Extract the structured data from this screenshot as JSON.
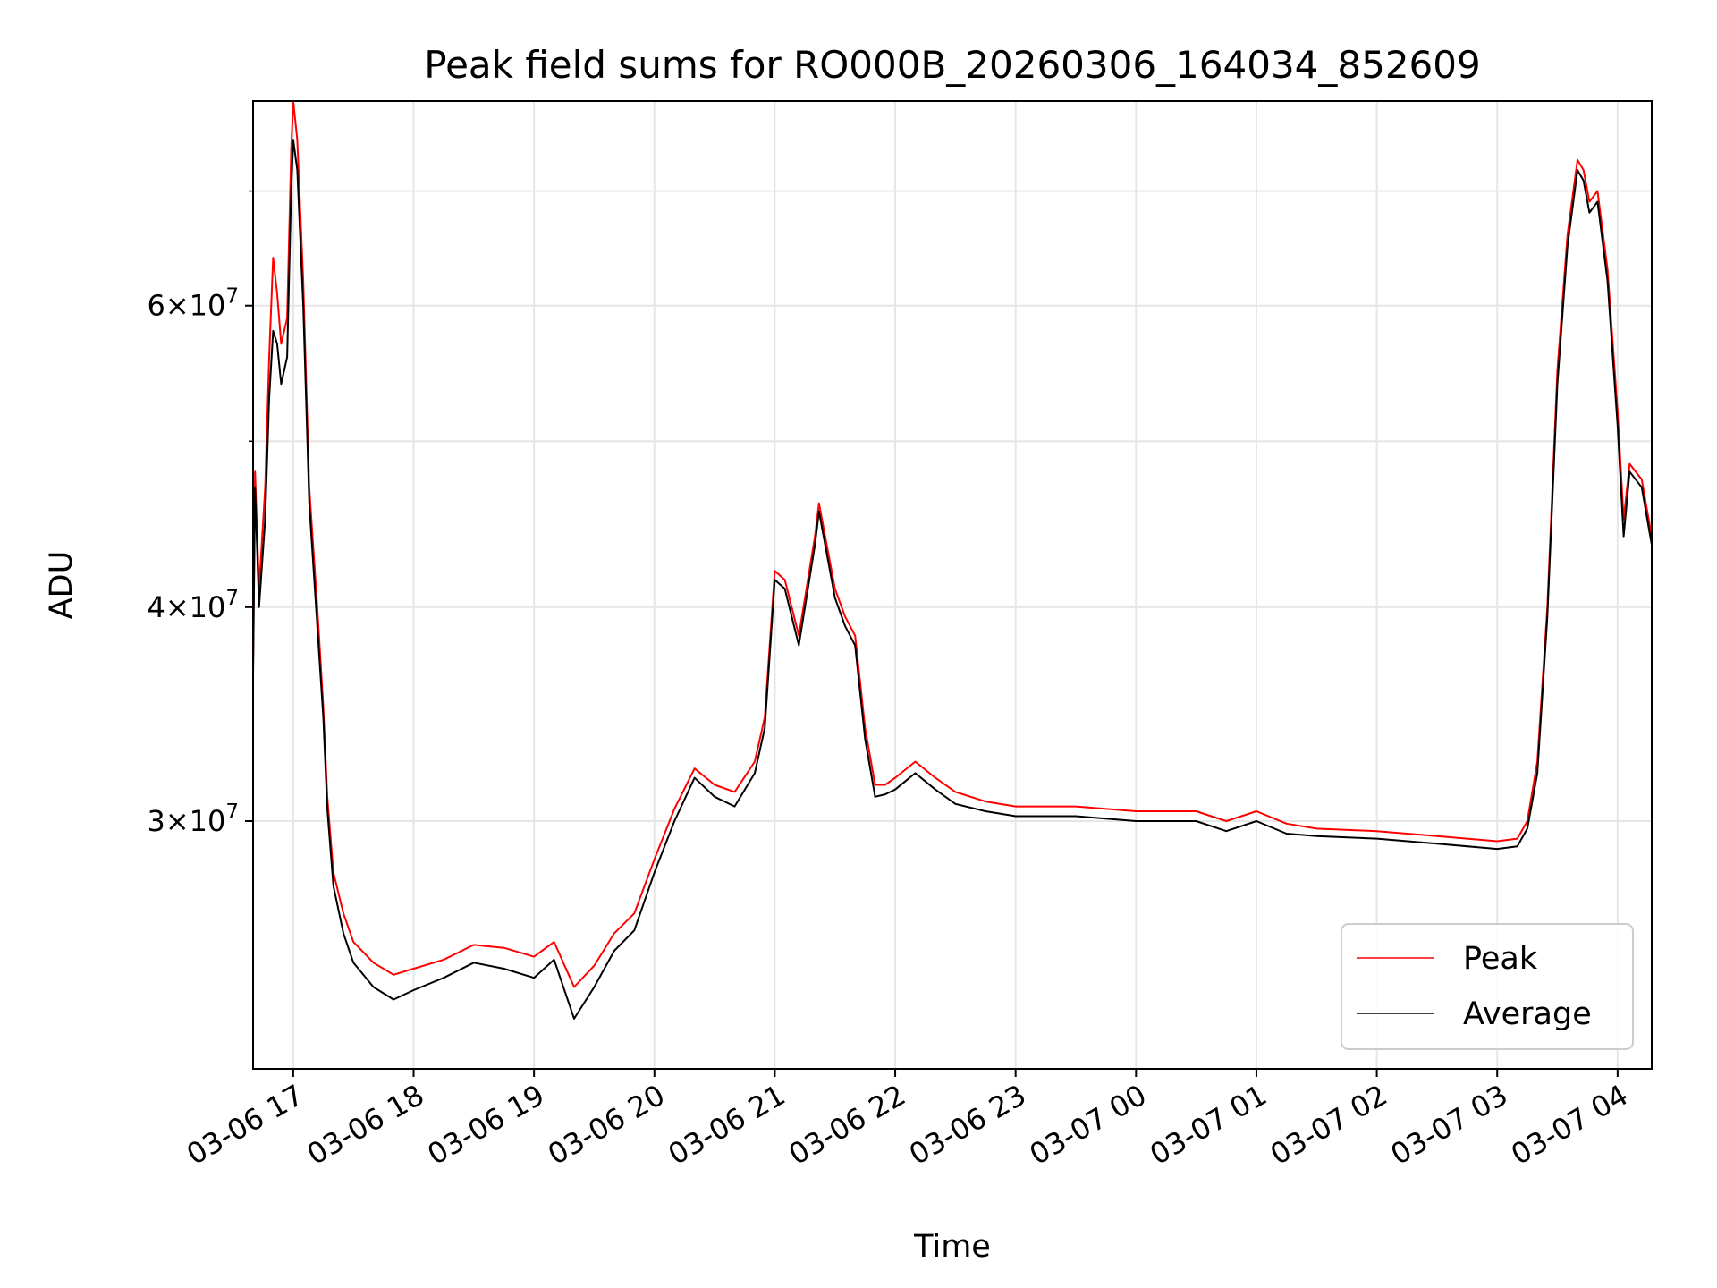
{
  "chart_data": {
    "type": "line",
    "title": "Peak field sums for RO000B_20260306_164034_852609",
    "xlabel": "Time",
    "ylabel": "ADU",
    "x_axis": {
      "scale": "time",
      "range": [
        "2026-03-06 16:40",
        "2026-03-07 04:17"
      ],
      "ticks": [
        "2026-03-06 17:00",
        "2026-03-06 18:00",
        "2026-03-06 19:00",
        "2026-03-06 20:00",
        "2026-03-06 21:00",
        "2026-03-06 22:00",
        "2026-03-06 23:00",
        "2026-03-07 00:00",
        "2026-03-07 01:00",
        "2026-03-07 02:00",
        "2026-03-07 03:00",
        "2026-03-07 04:00"
      ],
      "tick_labels": [
        "03-06 17",
        "03-06 18",
        "03-06 19",
        "03-06 20",
        "03-06 21",
        "03-06 22",
        "03-06 23",
        "03-07 00",
        "03-07 01",
        "03-07 02",
        "03-07 03",
        "03-07 04"
      ]
    },
    "y_axis": {
      "scale": "log",
      "range": [
        21500000,
        79000000
      ],
      "major_ticks": [
        30000000,
        40000000,
        60000000
      ],
      "major_tick_labels": [
        {
          "coef": "3",
          "exp": "7"
        },
        {
          "coef": "4",
          "exp": "7"
        },
        {
          "coef": "6",
          "exp": "7"
        }
      ],
      "minor_ticks": [
        50000000,
        70000000
      ]
    },
    "grid": true,
    "legend": "lower right",
    "series": [
      {
        "name": "Peak",
        "color": "#ff0000",
        "points": [
          [
            "2026-03-06 16:40",
            37000000
          ],
          [
            "2026-03-06 16:41",
            48000000
          ],
          [
            "2026-03-06 16:43",
            41000000
          ],
          [
            "2026-03-06 16:46",
            47000000
          ],
          [
            "2026-03-06 16:48",
            56000000
          ],
          [
            "2026-03-06 16:50",
            64000000
          ],
          [
            "2026-03-06 16:52",
            61000000
          ],
          [
            "2026-03-06 16:54",
            57000000
          ],
          [
            "2026-03-06 16:57",
            59000000
          ],
          [
            "2026-03-06 16:59",
            74000000
          ],
          [
            "2026-03-06 17:00",
            79000000
          ],
          [
            "2026-03-06 17:02",
            75000000
          ],
          [
            "2026-03-06 17:05",
            62000000
          ],
          [
            "2026-03-06 17:08",
            47000000
          ],
          [
            "2026-03-06 17:12",
            40000000
          ],
          [
            "2026-03-06 17:15",
            35000000
          ],
          [
            "2026-03-06 17:17",
            31000000
          ],
          [
            "2026-03-06 17:20",
            28000000
          ],
          [
            "2026-03-06 17:25",
            26500000
          ],
          [
            "2026-03-06 17:30",
            25500000
          ],
          [
            "2026-03-06 17:40",
            24800000
          ],
          [
            "2026-03-06 17:50",
            24400000
          ],
          [
            "2026-03-06 18:00",
            24600000
          ],
          [
            "2026-03-06 18:15",
            24900000
          ],
          [
            "2026-03-06 18:30",
            25400000
          ],
          [
            "2026-03-06 18:45",
            25300000
          ],
          [
            "2026-03-06 19:00",
            25000000
          ],
          [
            "2026-03-06 19:10",
            25500000
          ],
          [
            "2026-03-06 19:20",
            24000000
          ],
          [
            "2026-03-06 19:30",
            24700000
          ],
          [
            "2026-03-06 19:40",
            25800000
          ],
          [
            "2026-03-06 19:50",
            26500000
          ],
          [
            "2026-03-06 20:00",
            28500000
          ],
          [
            "2026-03-06 20:10",
            30500000
          ],
          [
            "2026-03-06 20:20",
            32200000
          ],
          [
            "2026-03-06 20:30",
            31500000
          ],
          [
            "2026-03-06 20:40",
            31200000
          ],
          [
            "2026-03-06 20:50",
            32500000
          ],
          [
            "2026-03-06 20:55",
            34500000
          ],
          [
            "2026-03-06 21:00",
            42000000
          ],
          [
            "2026-03-06 21:05",
            41500000
          ],
          [
            "2026-03-06 21:12",
            38500000
          ],
          [
            "2026-03-06 21:20",
            44000000
          ],
          [
            "2026-03-06 21:22",
            46000000
          ],
          [
            "2026-03-06 21:30",
            41000000
          ],
          [
            "2026-03-06 21:35",
            39500000
          ],
          [
            "2026-03-06 21:40",
            38500000
          ],
          [
            "2026-03-06 21:45",
            34000000
          ],
          [
            "2026-03-06 21:50",
            31500000
          ],
          [
            "2026-03-06 21:55",
            31500000
          ],
          [
            "2026-03-06 22:00",
            31800000
          ],
          [
            "2026-03-06 22:10",
            32500000
          ],
          [
            "2026-03-06 22:20",
            31800000
          ],
          [
            "2026-03-06 22:30",
            31200000
          ],
          [
            "2026-03-06 22:45",
            30800000
          ],
          [
            "2026-03-06 23:00",
            30600000
          ],
          [
            "2026-03-06 23:30",
            30600000
          ],
          [
            "2026-03-07 00:00",
            30400000
          ],
          [
            "2026-03-07 00:30",
            30400000
          ],
          [
            "2026-03-07 00:45",
            30000000
          ],
          [
            "2026-03-07 01:00",
            30400000
          ],
          [
            "2026-03-07 01:15",
            29900000
          ],
          [
            "2026-03-07 01:30",
            29700000
          ],
          [
            "2026-03-07 02:00",
            29600000
          ],
          [
            "2026-03-07 02:30",
            29400000
          ],
          [
            "2026-03-07 03:00",
            29200000
          ],
          [
            "2026-03-07 03:10",
            29300000
          ],
          [
            "2026-03-07 03:15",
            30000000
          ],
          [
            "2026-03-07 03:20",
            32500000
          ],
          [
            "2026-03-07 03:25",
            40000000
          ],
          [
            "2026-03-07 03:30",
            55000000
          ],
          [
            "2026-03-07 03:35",
            66000000
          ],
          [
            "2026-03-07 03:40",
            73000000
          ],
          [
            "2026-03-07 03:43",
            72000000
          ],
          [
            "2026-03-07 03:46",
            69000000
          ],
          [
            "2026-03-07 03:50",
            70000000
          ],
          [
            "2026-03-07 03:55",
            63000000
          ],
          [
            "2026-03-07 04:00",
            52000000
          ],
          [
            "2026-03-07 04:03",
            45000000
          ],
          [
            "2026-03-07 04:06",
            48500000
          ],
          [
            "2026-03-07 04:12",
            47500000
          ],
          [
            "2026-03-07 04:17",
            44000000
          ]
        ]
      },
      {
        "name": "Average",
        "color": "#000000",
        "points": [
          [
            "2026-03-06 16:40",
            36500000
          ],
          [
            "2026-03-06 16:41",
            47000000
          ],
          [
            "2026-03-06 16:43",
            40000000
          ],
          [
            "2026-03-06 16:46",
            45000000
          ],
          [
            "2026-03-06 16:48",
            53000000
          ],
          [
            "2026-03-06 16:50",
            58000000
          ],
          [
            "2026-03-06 16:52",
            57000000
          ],
          [
            "2026-03-06 16:54",
            54000000
          ],
          [
            "2026-03-06 16:57",
            56000000
          ],
          [
            "2026-03-06 16:59",
            70000000
          ],
          [
            "2026-03-06 17:00",
            75000000
          ],
          [
            "2026-03-06 17:02",
            72000000
          ],
          [
            "2026-03-06 17:05",
            60000000
          ],
          [
            "2026-03-06 17:08",
            46000000
          ],
          [
            "2026-03-06 17:12",
            39000000
          ],
          [
            "2026-03-06 17:15",
            34500000
          ],
          [
            "2026-03-06 17:17",
            30500000
          ],
          [
            "2026-03-06 17:20",
            27500000
          ],
          [
            "2026-03-06 17:25",
            25800000
          ],
          [
            "2026-03-06 17:30",
            24800000
          ],
          [
            "2026-03-06 17:40",
            24000000
          ],
          [
            "2026-03-06 17:50",
            23600000
          ],
          [
            "2026-03-06 18:00",
            23900000
          ],
          [
            "2026-03-06 18:15",
            24300000
          ],
          [
            "2026-03-06 18:30",
            24800000
          ],
          [
            "2026-03-06 18:45",
            24600000
          ],
          [
            "2026-03-06 19:00",
            24300000
          ],
          [
            "2026-03-06 19:10",
            24900000
          ],
          [
            "2026-03-06 19:20",
            23000000
          ],
          [
            "2026-03-06 19:30",
            24000000
          ],
          [
            "2026-03-06 19:40",
            25200000
          ],
          [
            "2026-03-06 19:50",
            25900000
          ],
          [
            "2026-03-06 20:00",
            28000000
          ],
          [
            "2026-03-06 20:10",
            30000000
          ],
          [
            "2026-03-06 20:20",
            31800000
          ],
          [
            "2026-03-06 20:30",
            31000000
          ],
          [
            "2026-03-06 20:40",
            30600000
          ],
          [
            "2026-03-06 20:50",
            32000000
          ],
          [
            "2026-03-06 20:55",
            34000000
          ],
          [
            "2026-03-06 21:00",
            41500000
          ],
          [
            "2026-03-06 21:05",
            41000000
          ],
          [
            "2026-03-06 21:12",
            38000000
          ],
          [
            "2026-03-06 21:20",
            43500000
          ],
          [
            "2026-03-06 21:22",
            45500000
          ],
          [
            "2026-03-06 21:30",
            40500000
          ],
          [
            "2026-03-06 21:35",
            39000000
          ],
          [
            "2026-03-06 21:40",
            38000000
          ],
          [
            "2026-03-06 21:45",
            33500000
          ],
          [
            "2026-03-06 21:50",
            31000000
          ],
          [
            "2026-03-06 21:55",
            31100000
          ],
          [
            "2026-03-06 22:00",
            31300000
          ],
          [
            "2026-03-06 22:10",
            32000000
          ],
          [
            "2026-03-06 22:20",
            31300000
          ],
          [
            "2026-03-06 22:30",
            30700000
          ],
          [
            "2026-03-06 22:45",
            30400000
          ],
          [
            "2026-03-06 23:00",
            30200000
          ],
          [
            "2026-03-06 23:30",
            30200000
          ],
          [
            "2026-03-07 00:00",
            30000000
          ],
          [
            "2026-03-07 00:30",
            30000000
          ],
          [
            "2026-03-07 00:45",
            29600000
          ],
          [
            "2026-03-07 01:00",
            30000000
          ],
          [
            "2026-03-07 01:15",
            29500000
          ],
          [
            "2026-03-07 01:30",
            29400000
          ],
          [
            "2026-03-07 02:00",
            29300000
          ],
          [
            "2026-03-07 02:30",
            29100000
          ],
          [
            "2026-03-07 03:00",
            28900000
          ],
          [
            "2026-03-07 03:10",
            29000000
          ],
          [
            "2026-03-07 03:15",
            29700000
          ],
          [
            "2026-03-07 03:20",
            32000000
          ],
          [
            "2026-03-07 03:25",
            39500000
          ],
          [
            "2026-03-07 03:30",
            54000000
          ],
          [
            "2026-03-07 03:35",
            65000000
          ],
          [
            "2026-03-07 03:40",
            72000000
          ],
          [
            "2026-03-07 03:43",
            71000000
          ],
          [
            "2026-03-07 03:46",
            68000000
          ],
          [
            "2026-03-07 03:50",
            69000000
          ],
          [
            "2026-03-07 03:55",
            62000000
          ],
          [
            "2026-03-07 04:00",
            51000000
          ],
          [
            "2026-03-07 04:03",
            44000000
          ],
          [
            "2026-03-07 04:06",
            48000000
          ],
          [
            "2026-03-07 04:12",
            47000000
          ],
          [
            "2026-03-07 04:17",
            43500000
          ]
        ]
      }
    ]
  }
}
